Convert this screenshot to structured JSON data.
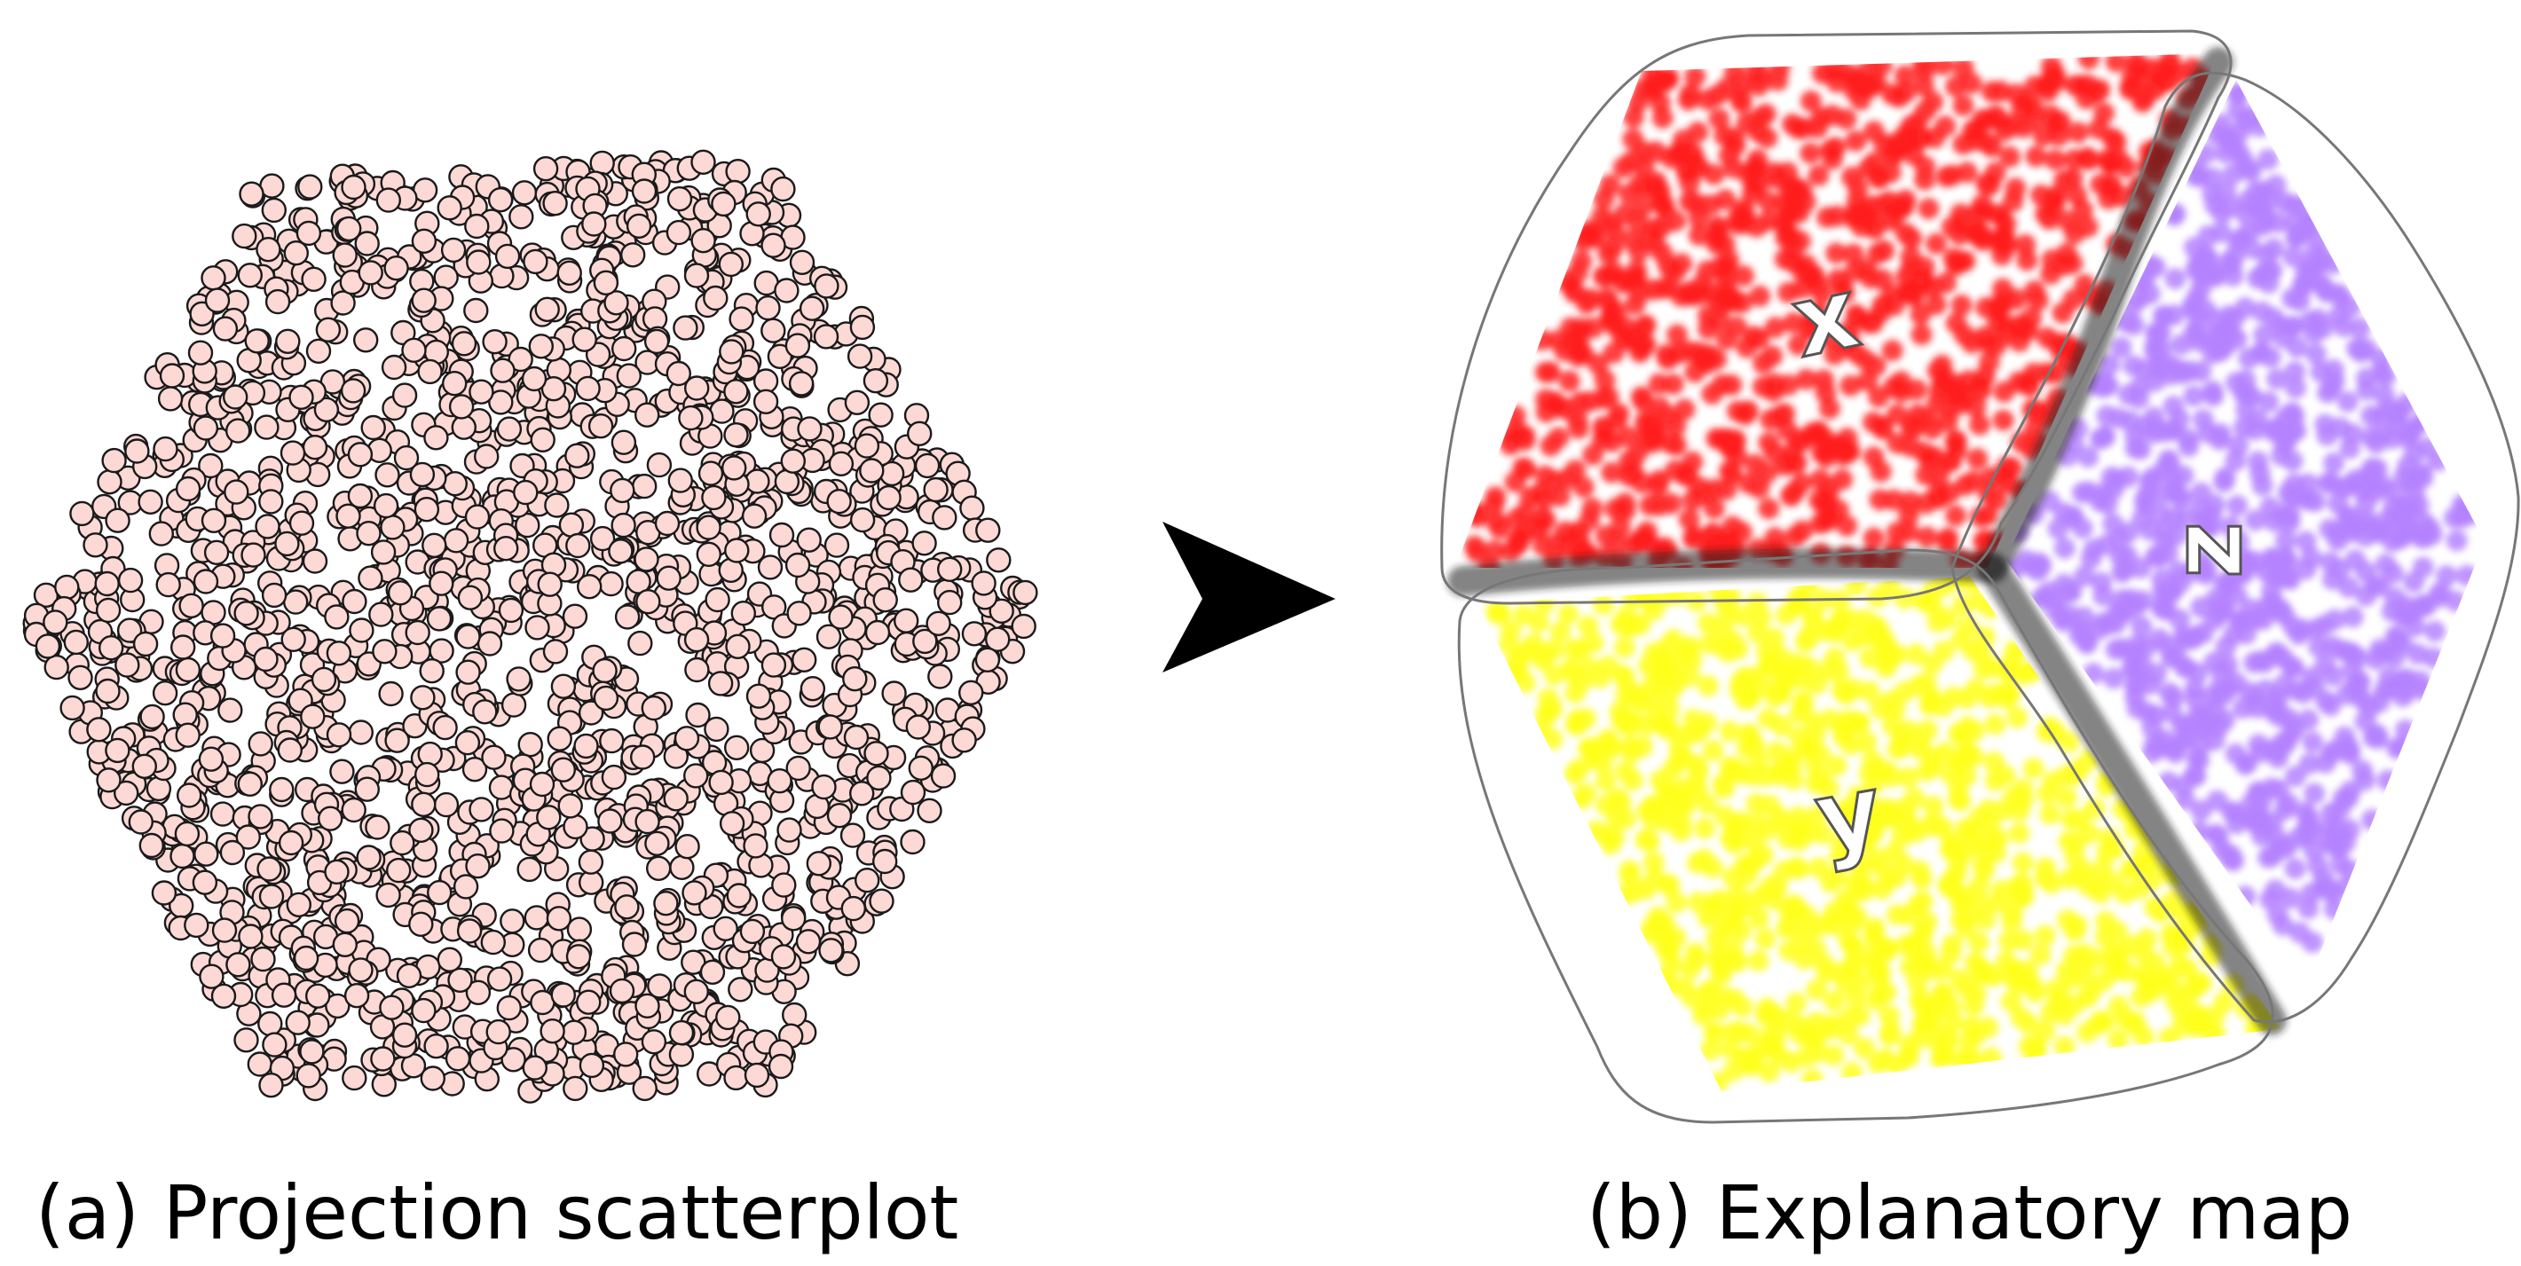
{
  "figure": {
    "panels": [
      {
        "id": "a",
        "caption": "(a) Projection scatterplot"
      },
      {
        "id": "b",
        "caption": "(b) Explanatory map",
        "regions": [
          {
            "label": "x",
            "color": "#ff2020"
          },
          {
            "label": "y",
            "color": "#ffff20"
          },
          {
            "label": "z",
            "color": "#b583ff"
          }
        ],
        "border_color": "#000000"
      }
    ],
    "scatter_point_fill": "#fdd9d6",
    "scatter_point_stroke": "#1a1a1a",
    "arrow_color": "#000000"
  }
}
